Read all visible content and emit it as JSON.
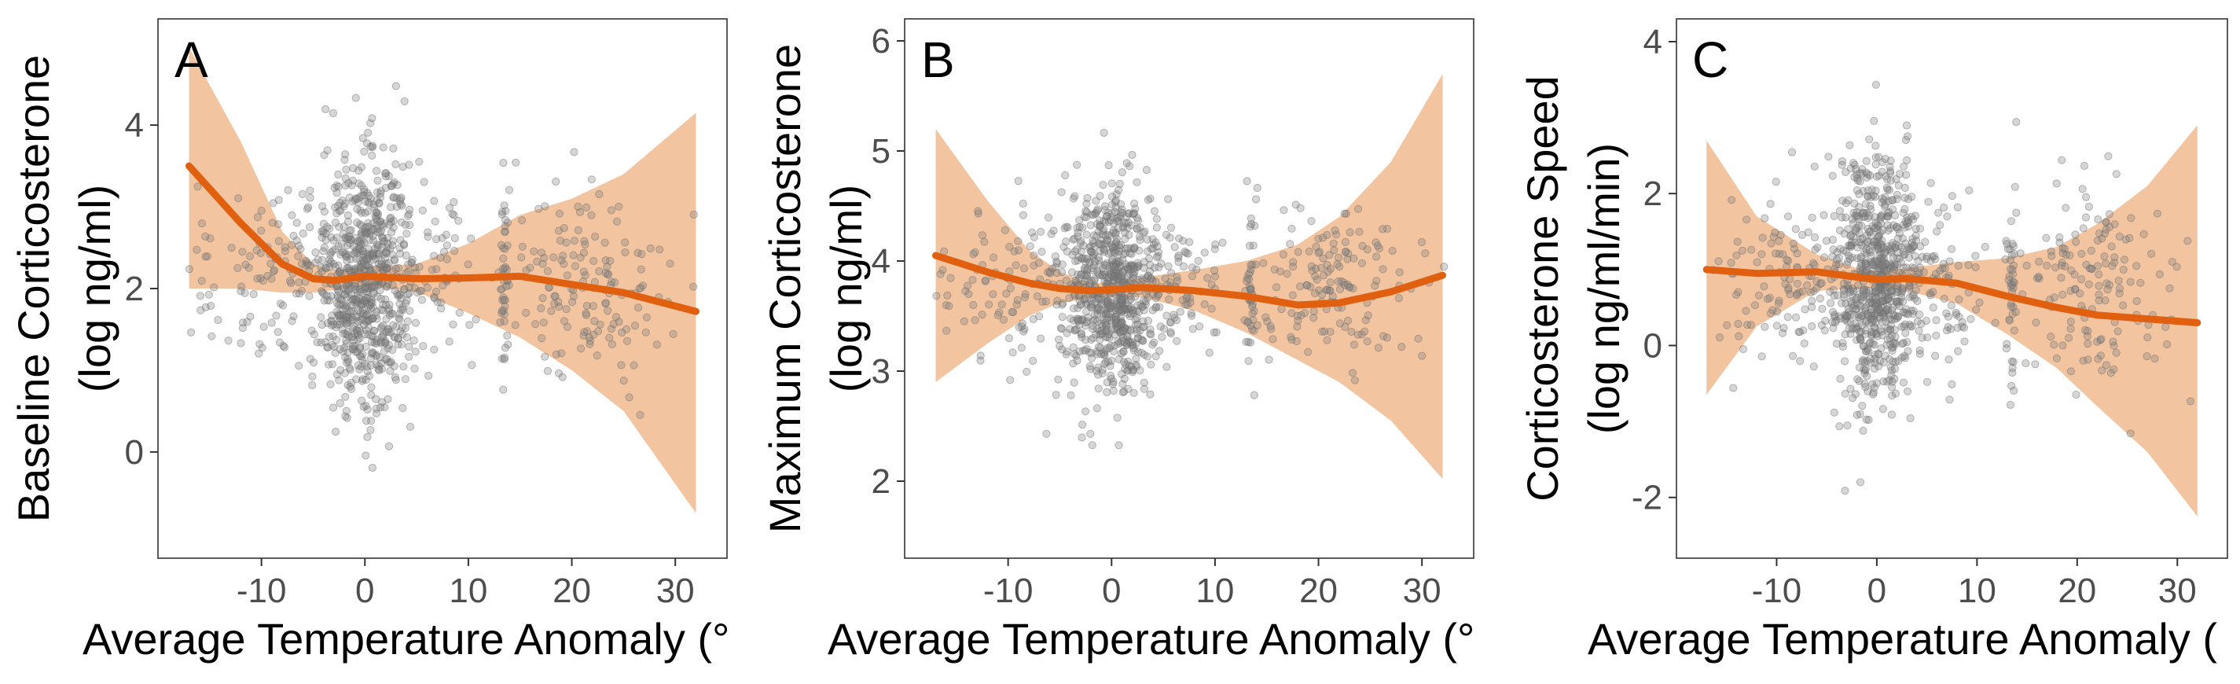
{
  "colors": {
    "fit_line": "#e0600f",
    "confidence_band": "#f2c4a0",
    "points": "#7f7f7f",
    "frame": "#333333"
  },
  "chart_data": [
    {
      "type": "scatter",
      "panel_label": "A",
      "xlabel": "Average Temperature Anomaly (°",
      "ylabel_lines": [
        "Baseline Corticosterone",
        "(log ng/ml)"
      ],
      "xlim": [
        -20,
        35
      ],
      "ylim": [
        -1.3,
        5.3
      ],
      "x_ticks": [
        -10,
        0,
        10,
        20,
        30
      ],
      "x_tick_labels": [
        "-10",
        "0",
        "10",
        "20",
        "30"
      ],
      "y_ticks": [
        0,
        2,
        4
      ],
      "y_tick_labels": [
        "0",
        "2",
        "4"
      ],
      "grid": false,
      "legend": "none",
      "point_cloud": {
        "y_center": 2.1,
        "y_spread": 0.75,
        "y_min": -0.4,
        "y_max": 4.95
      },
      "series": [
        {
          "kind": "smooth_fit",
          "x": [
            -17,
            -12,
            -8,
            -5,
            -3,
            0,
            5,
            10,
            15,
            20,
            25,
            32
          ],
          "y": [
            3.5,
            2.8,
            2.3,
            2.12,
            2.1,
            2.15,
            2.12,
            2.13,
            2.15,
            2.05,
            1.95,
            1.72
          ],
          "lower": [
            2.0,
            2.0,
            1.95,
            1.95,
            1.98,
            2.03,
            1.96,
            1.7,
            1.4,
            1.0,
            0.5,
            -0.75
          ],
          "upper": [
            4.95,
            3.8,
            2.7,
            2.3,
            2.22,
            2.27,
            2.3,
            2.55,
            2.9,
            3.1,
            3.4,
            4.15
          ]
        }
      ]
    },
    {
      "type": "scatter",
      "panel_label": "B",
      "xlabel": "Average Temperature Anomaly (°",
      "ylabel_lines": [
        "Maximum Corticosterone",
        "(log ng/ml)"
      ],
      "xlim": [
        -20,
        35
      ],
      "ylim": [
        1.3,
        6.2
      ],
      "x_ticks": [
        -10,
        0,
        10,
        20,
        30
      ],
      "x_tick_labels": [
        "-10",
        "0",
        "10",
        "20",
        "30"
      ],
      "y_ticks": [
        2,
        3,
        4,
        5,
        6
      ],
      "y_tick_labels": [
        "2",
        "3",
        "4",
        "5",
        "6"
      ],
      "grid": false,
      "legend": "none",
      "point_cloud": {
        "y_center": 3.75,
        "y_spread": 0.45,
        "y_min": 1.9,
        "y_max": 5.6
      },
      "series": [
        {
          "kind": "smooth_fit",
          "x": [
            -17,
            -12,
            -8,
            -5,
            -2,
            0,
            3,
            8,
            13,
            18,
            22,
            27,
            32
          ],
          "y": [
            4.05,
            3.9,
            3.8,
            3.75,
            3.73,
            3.74,
            3.76,
            3.73,
            3.68,
            3.6,
            3.62,
            3.72,
            3.87
          ],
          "lower": [
            2.9,
            3.25,
            3.5,
            3.62,
            3.66,
            3.68,
            3.67,
            3.55,
            3.35,
            3.1,
            2.9,
            2.55,
            2.02
          ],
          "upper": [
            5.2,
            4.55,
            4.1,
            3.9,
            3.8,
            3.8,
            3.85,
            3.92,
            4.0,
            4.15,
            4.4,
            4.9,
            5.7
          ]
        }
      ]
    },
    {
      "type": "scatter",
      "panel_label": "C",
      "xlabel": "Average Temperature Anomaly (",
      "ylabel_lines": [
        "Corticosterone Speed",
        "(log ng/ml/min)"
      ],
      "xlim": [
        -20,
        35
      ],
      "ylim": [
        -2.8,
        4.3
      ],
      "x_ticks": [
        -10,
        0,
        10,
        20,
        30
      ],
      "x_tick_labels": [
        "-10",
        "0",
        "10",
        "20",
        "30"
      ],
      "y_ticks": [
        -2,
        0,
        2,
        4
      ],
      "y_tick_labels": [
        "-2",
        "0",
        "2",
        "4"
      ],
      "grid": false,
      "legend": "none",
      "point_cloud": {
        "y_center": 0.85,
        "y_spread": 0.8,
        "y_min": -2.2,
        "y_max": 3.7
      },
      "series": [
        {
          "kind": "smooth_fit",
          "x": [
            -17,
            -12,
            -6,
            -2,
            0,
            3,
            8,
            13,
            18,
            22,
            27,
            32
          ],
          "y": [
            1.0,
            0.95,
            0.97,
            0.9,
            0.87,
            0.88,
            0.82,
            0.65,
            0.5,
            0.4,
            0.35,
            0.3
          ],
          "lower": [
            -0.65,
            0.25,
            0.72,
            0.75,
            0.76,
            0.72,
            0.55,
            0.15,
            -0.3,
            -0.8,
            -1.4,
            -2.25
          ],
          "upper": [
            2.7,
            1.7,
            1.2,
            1.02,
            0.98,
            1.02,
            1.1,
            1.15,
            1.3,
            1.6,
            2.1,
            2.9
          ]
        }
      ]
    }
  ]
}
